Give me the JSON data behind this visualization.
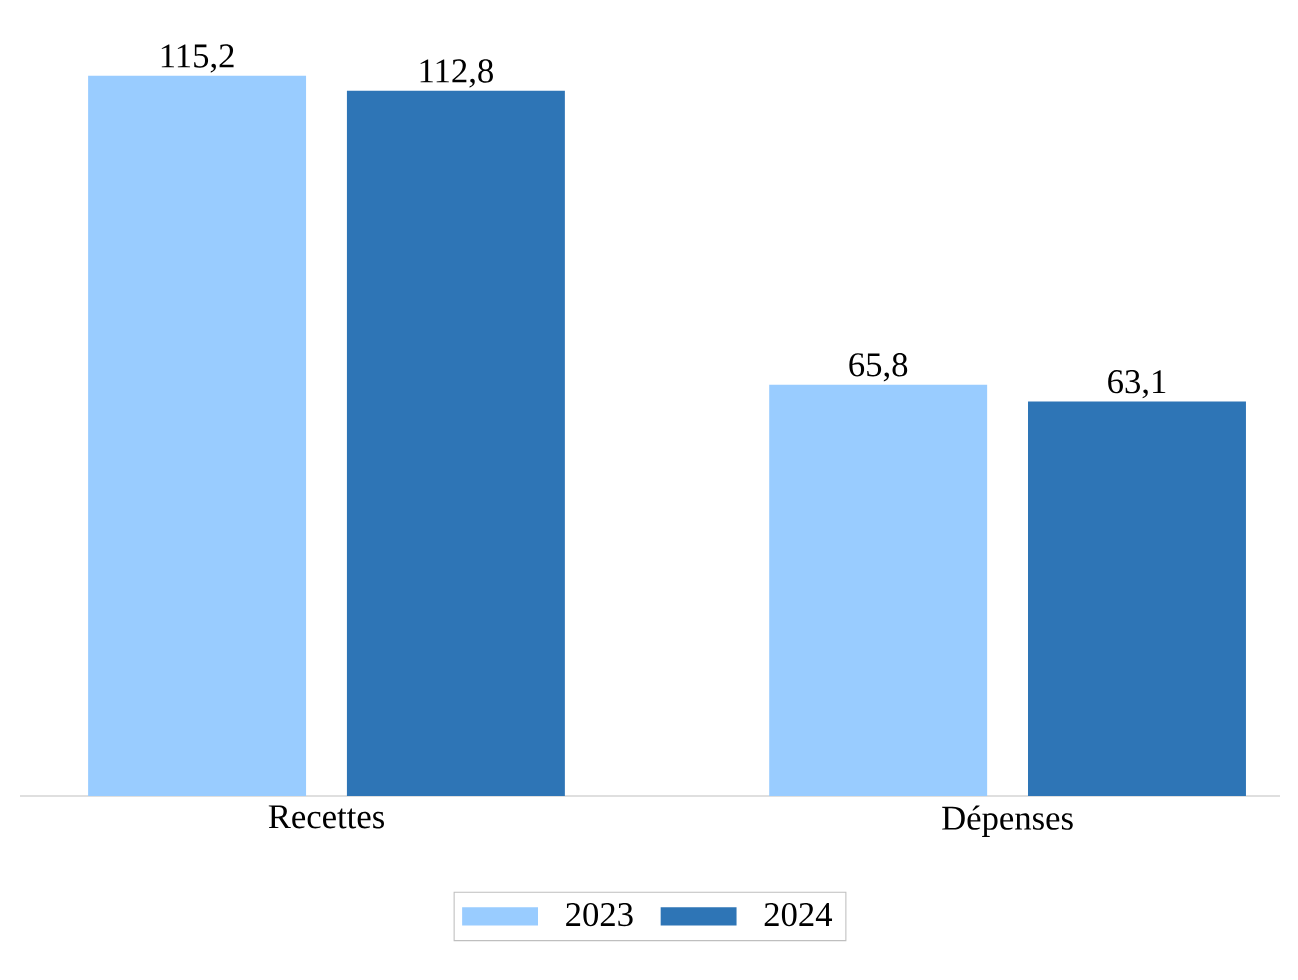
{
  "chart_data": {
    "type": "bar",
    "categories": [
      "Recettes",
      "Dépenses"
    ],
    "series": [
      {
        "name": "2023",
        "color": "#99ccff",
        "values": [
          115.2,
          65.8
        ],
        "value_labels": [
          "115,2",
          "65,8"
        ]
      },
      {
        "name": "2024",
        "color": "#2e75b6",
        "values": [
          112.8,
          63.1
        ],
        "value_labels": [
          "112,8",
          "63,1"
        ]
      }
    ],
    "legend": "bottom"
  }
}
